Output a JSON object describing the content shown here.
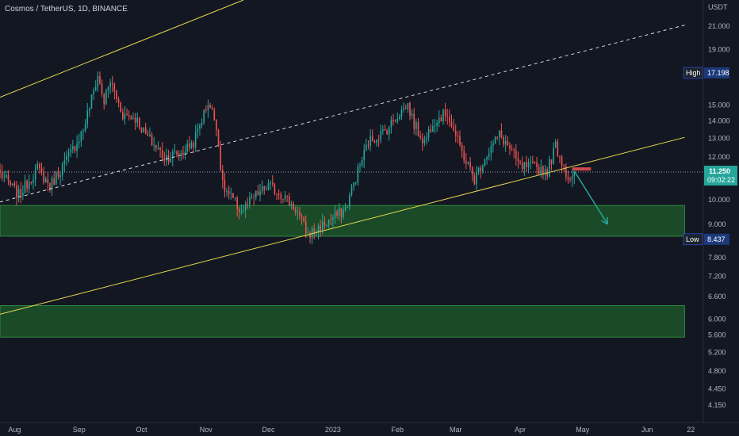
{
  "header": {
    "title": "Cosmos / TetherUS, 1D, BINANCE"
  },
  "axis": {
    "currency": "USDT"
  },
  "colors": {
    "background": "#131722",
    "up": "#26a69a",
    "down": "#ef5350",
    "channel": "#e6d94e",
    "zone": "#1e5c2a",
    "zone_border": "#2e8b3e",
    "arrow": "#26a69a"
  },
  "chart_data": {
    "type": "candlestick",
    "title": "Cosmos / TetherUS, 1D, BINANCE",
    "y_scale": "log",
    "ylim": [
      3.85,
      23.5
    ],
    "xlim": [
      "2022-07-25",
      "2023-06-28"
    ],
    "y_ticks": [
      "21.000",
      "19.000",
      "15.000",
      "14.000",
      "13.000",
      "12.000",
      "10.000",
      "9.000",
      "7.800",
      "7.200",
      "6.600",
      "6.000",
      "5.600",
      "5.200",
      "4.800",
      "4.450",
      "4.150"
    ],
    "x_ticks": [
      {
        "label": "Aug",
        "date": "2022-08-01"
      },
      {
        "label": "Sep",
        "date": "2022-09-01"
      },
      {
        "label": "Oct",
        "date": "2022-10-01"
      },
      {
        "label": "Nov",
        "date": "2022-11-01"
      },
      {
        "label": "Dec",
        "date": "2022-12-01"
      },
      {
        "label": "2023",
        "date": "2023-01-01"
      },
      {
        "label": "Feb",
        "date": "2023-02-01"
      },
      {
        "label": "Mar",
        "date": "2023-03-01"
      },
      {
        "label": "Apr",
        "date": "2023-04-01"
      },
      {
        "label": "May",
        "date": "2023-05-01"
      },
      {
        "label": "Jun",
        "date": "2023-06-01"
      },
      {
        "label": "22",
        "date": "2023-06-22"
      }
    ],
    "high_marker": {
      "label": "High",
      "value": "17.198"
    },
    "low_marker": {
      "label": "Low",
      "value": "8.437"
    },
    "last_price": {
      "value": "11.250",
      "countdown": "09:02:22"
    },
    "anchors": [
      [
        "2022-07-25",
        11.2
      ],
      [
        "2022-08-03",
        10.2
      ],
      [
        "2022-08-12",
        11.4
      ],
      [
        "2022-08-18",
        10.6
      ],
      [
        "2022-08-28",
        12.2
      ],
      [
        "2022-09-03",
        13.5
      ],
      [
        "2022-09-10",
        17.0
      ],
      [
        "2022-09-13",
        15.2
      ],
      [
        "2022-09-16",
        16.6
      ],
      [
        "2022-09-22",
        14.4
      ],
      [
        "2022-09-28",
        14.2
      ],
      [
        "2022-10-03",
        13.2
      ],
      [
        "2022-10-12",
        12.0
      ],
      [
        "2022-10-20",
        12.2
      ],
      [
        "2022-10-26",
        12.8
      ],
      [
        "2022-11-02",
        15.2
      ],
      [
        "2022-11-06",
        13.8
      ],
      [
        "2022-11-09",
        10.6
      ],
      [
        "2022-11-12",
        10.2
      ],
      [
        "2022-11-18",
        9.5
      ],
      [
        "2022-11-24",
        10.1
      ],
      [
        "2022-12-01",
        10.6
      ],
      [
        "2022-12-08",
        10.2
      ],
      [
        "2022-12-14",
        9.6
      ],
      [
        "2022-12-20",
        8.6
      ],
      [
        "2022-12-26",
        8.9
      ],
      [
        "2023-01-02",
        9.3
      ],
      [
        "2023-01-07",
        9.6
      ],
      [
        "2023-01-13",
        11.3
      ],
      [
        "2023-01-18",
        12.8
      ],
      [
        "2023-01-26",
        13.4
      ],
      [
        "2023-02-02",
        14.5
      ],
      [
        "2023-02-06",
        15.0
      ],
      [
        "2023-02-09",
        13.8
      ],
      [
        "2023-02-14",
        12.8
      ],
      [
        "2023-02-18",
        14.0
      ],
      [
        "2023-02-25",
        14.5
      ],
      [
        "2023-03-03",
        12.5
      ],
      [
        "2023-03-10",
        10.9
      ],
      [
        "2023-03-15",
        12.0
      ],
      [
        "2023-03-22",
        13.2
      ],
      [
        "2023-03-26",
        12.6
      ],
      [
        "2023-04-01",
        11.5
      ],
      [
        "2023-04-08",
        11.5
      ],
      [
        "2023-04-14",
        11.3
      ],
      [
        "2023-04-18",
        12.6
      ],
      [
        "2023-04-21",
        11.8
      ],
      [
        "2023-04-24",
        11.0
      ],
      [
        "2023-04-26",
        11.1
      ],
      [
        "2023-04-27",
        11.25
      ]
    ],
    "zones": [
      {
        "from": "2022-07-25",
        "to": "2023-06-19",
        "low": 8.55,
        "high": 9.75
      },
      {
        "from": "2022-07-25",
        "to": "2023-06-19",
        "low": 5.55,
        "high": 6.35
      }
    ],
    "lines": [
      {
        "name": "channel-upper",
        "style": "solid",
        "points": [
          [
            "2022-07-25",
            15.5
          ],
          [
            "2022-11-19",
            23.5
          ]
        ]
      },
      {
        "name": "channel-lower",
        "style": "solid",
        "points": [
          [
            "2022-07-25",
            6.12
          ],
          [
            "2023-06-19",
            13.05
          ]
        ]
      },
      {
        "name": "channel-mid",
        "style": "dashed",
        "points": [
          [
            "2022-07-25",
            9.9
          ],
          [
            "2023-06-19",
            21.1
          ]
        ]
      }
    ],
    "resistance_mark": {
      "from": "2023-04-26",
      "to": "2023-05-05",
      "value": 11.4
    },
    "projection": {
      "from": [
        "2023-04-27",
        11.3
      ],
      "to": [
        "2023-05-13",
        9.0
      ]
    }
  }
}
